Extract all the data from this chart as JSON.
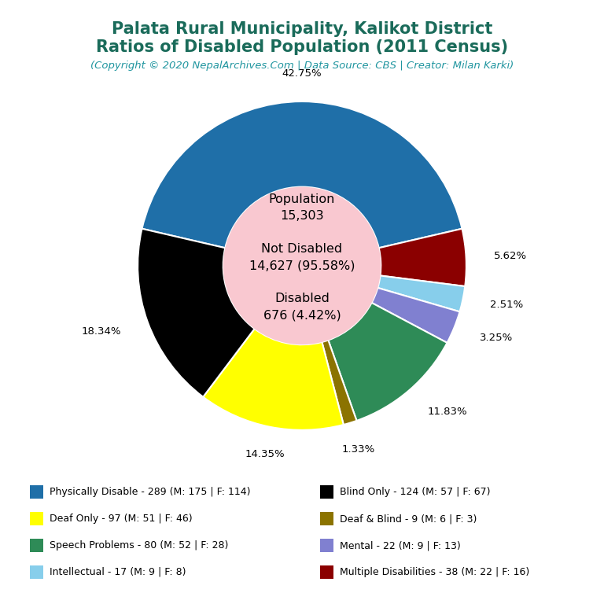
{
  "title_line1": "Palata Rural Municipality, Kalikot District",
  "title_line2": "Ratios of Disabled Population (2011 Census)",
  "subtitle": "(Copyright © 2020 NepalArchives.Com | Data Source: CBS | Creator: Milan Karki)",
  "title_color": "#1a6b5a",
  "subtitle_color": "#2196a0",
  "total_population": 15303,
  "not_disabled": 14627,
  "not_disabled_pct": 95.58,
  "disabled": 676,
  "disabled_pct": 4.42,
  "donut_hole_color": "#f9c8d0",
  "background_color": "#ffffff",
  "slices": [
    {
      "label": "Physically Disable - 289 (M: 175 | F: 114)",
      "value": 289,
      "pct": "42.75%",
      "color": "#1f6fa8"
    },
    {
      "label": "Multiple Disabilities - 38 (M: 22 | F: 16)",
      "value": 38,
      "pct": "5.62%",
      "color": "#8b0000"
    },
    {
      "label": "Intellectual - 17 (M: 9 | F: 8)",
      "value": 17,
      "pct": "2.51%",
      "color": "#87ceeb"
    },
    {
      "label": "Mental - 22 (M: 9 | F: 13)",
      "value": 22,
      "pct": "3.25%",
      "color": "#8080d0"
    },
    {
      "label": "Speech Problems - 80 (M: 52 | F: 28)",
      "value": 80,
      "pct": "11.83%",
      "color": "#2e8b57"
    },
    {
      "label": "Deaf & Blind - 9 (M: 6 | F: 3)",
      "value": 9,
      "pct": "1.33%",
      "color": "#8b7300"
    },
    {
      "label": "Deaf Only - 97 (M: 51 | F: 46)",
      "value": 97,
      "pct": "14.35%",
      "color": "#ffff00"
    },
    {
      "label": "Blind Only - 124 (M: 57 | F: 67)",
      "value": 124,
      "pct": "18.34%",
      "color": "#000000"
    }
  ],
  "legend_entries": [
    {
      "label": "Physically Disable - 289 (M: 175 | F: 114)",
      "color": "#1f6fa8"
    },
    {
      "label": "Deaf Only - 97 (M: 51 | F: 46)",
      "color": "#ffff00"
    },
    {
      "label": "Speech Problems - 80 (M: 52 | F: 28)",
      "color": "#2e8b57"
    },
    {
      "label": "Intellectual - 17 (M: 9 | F: 8)",
      "color": "#87ceeb"
    },
    {
      "label": "Blind Only - 124 (M: 57 | F: 67)",
      "color": "#000000"
    },
    {
      "label": "Deaf & Blind - 9 (M: 6 | F: 3)",
      "color": "#8b7300"
    },
    {
      "label": "Mental - 22 (M: 9 | F: 13)",
      "color": "#8080d0"
    },
    {
      "label": "Multiple Disabilities - 38 (M: 22 | F: 16)",
      "color": "#8b0000"
    }
  ]
}
